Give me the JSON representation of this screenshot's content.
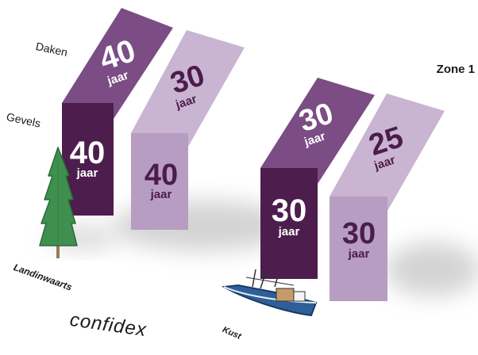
{
  "labels": {
    "roofs": "Daken",
    "facades": "Gevels",
    "inland": "Landinwaarts",
    "coast": "Kust",
    "zone": "Zone 1"
  },
  "unit": "jaar",
  "blocks": [
    {
      "id": "inland-dark",
      "roof_years": "40",
      "facade_years": "40"
    },
    {
      "id": "inland-light",
      "roof_years": "30",
      "facade_years": "40"
    },
    {
      "id": "coast-dark",
      "roof_years": "30",
      "facade_years": "30"
    },
    {
      "id": "coast-light",
      "roof_years": "25",
      "facade_years": "30"
    }
  ],
  "logo": {
    "text": "confidex"
  },
  "colors": {
    "dark_roof": "#7b4d84",
    "dark_facade": "#4d1d4e",
    "light_roof": "#c9b4d2",
    "light_facade": "#b79dc2",
    "dark_text": "#ffffff",
    "light_text": "#4b1c4c",
    "tree": "#3f8f4f",
    "boat": "#2f5f99",
    "logo": "#1b8fd0"
  }
}
